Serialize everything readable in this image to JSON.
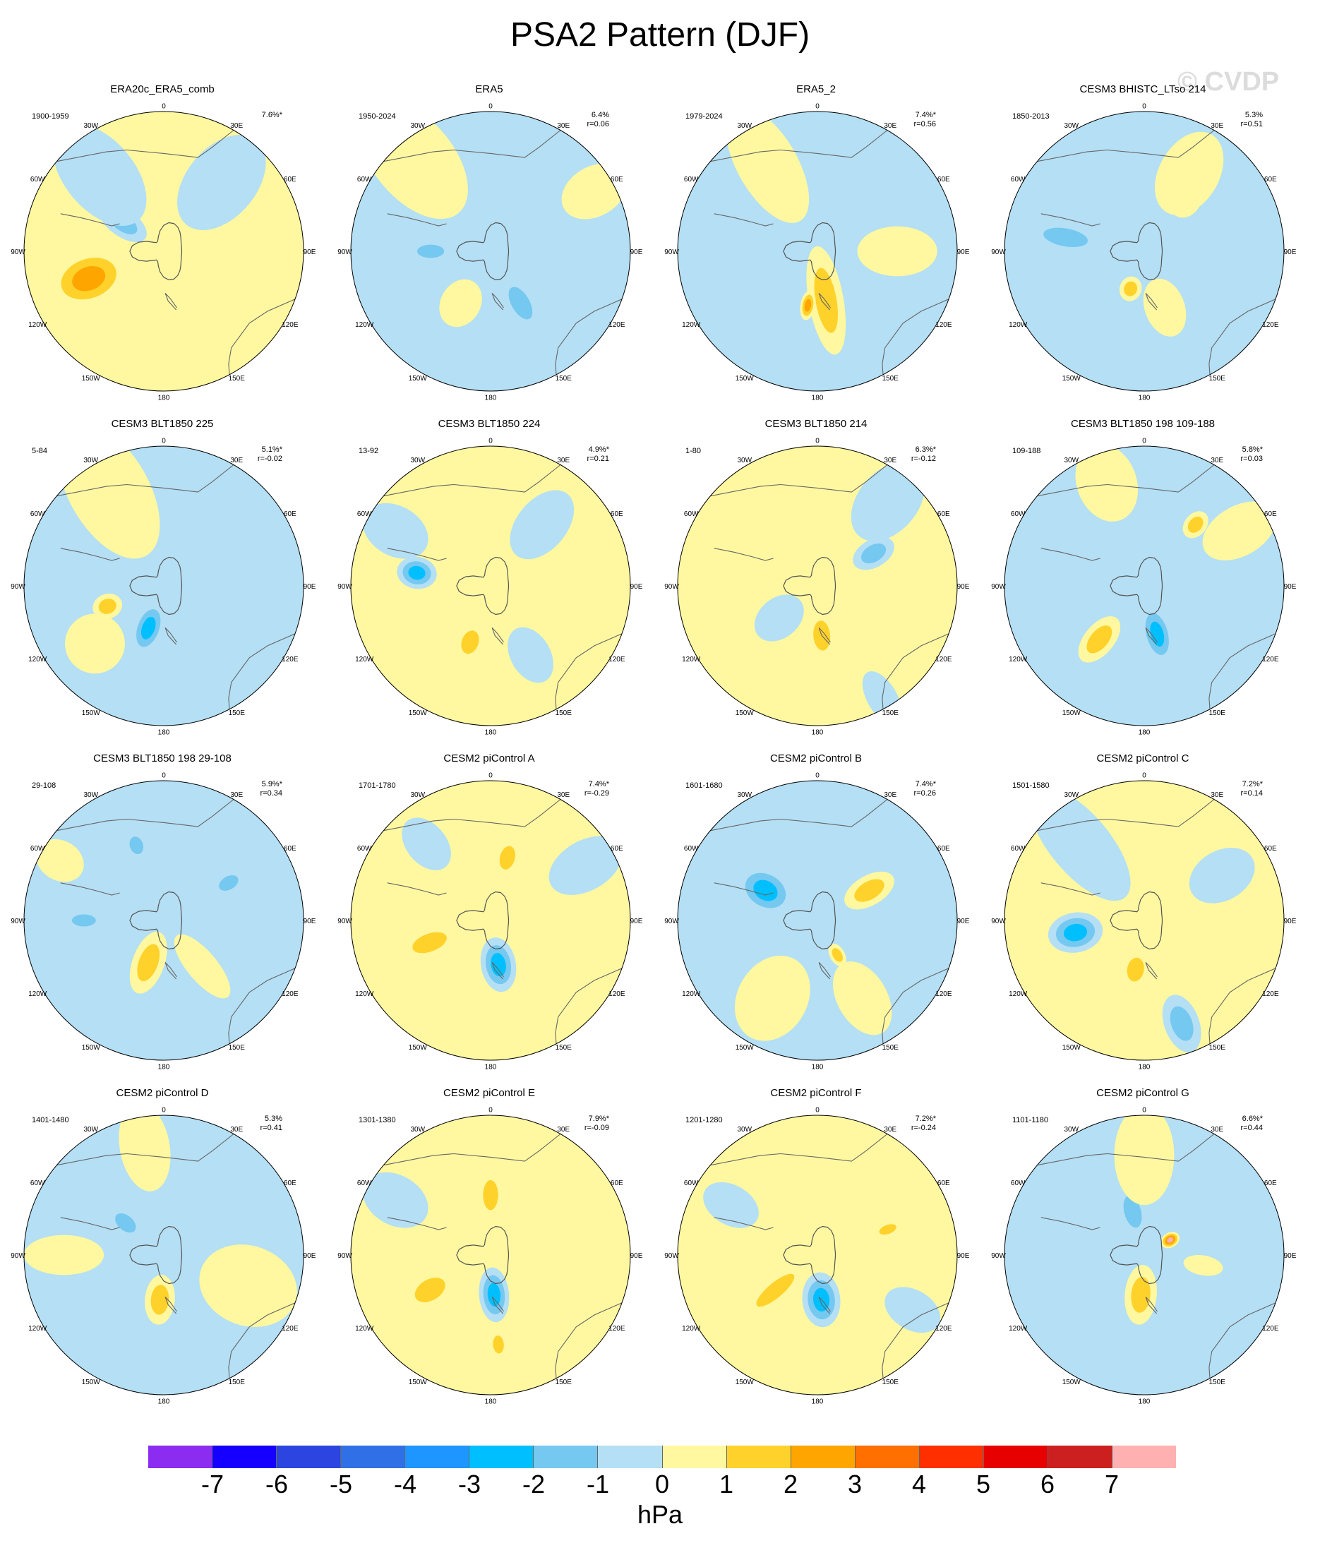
{
  "title": "PSA2 Pattern (DJF)",
  "watermark": "© CVDP",
  "lon_labels": [
    "0",
    "30E",
    "60E",
    "90E",
    "120E",
    "150E",
    "180",
    "150W",
    "120W",
    "90W",
    "60W",
    "30W"
  ],
  "panels": [
    {
      "title": "ERA20c_ERA5_comb",
      "years": "1900-1959",
      "pct": "7.6%*",
      "r": "",
      "bg": "yellow",
      "blobs": [
        {
          "lon": -110,
          "colat": 80,
          "l": 80,
          "w": 55,
          "lev": 3
        },
        {
          "lon": -55,
          "colat": 50,
          "l": 55,
          "w": 28,
          "lev": -2
        },
        {
          "lon": -40,
          "colat": 100,
          "l": 120,
          "w": 70,
          "lev": -1
        },
        {
          "lon": 40,
          "colat": 90,
          "l": 110,
          "w": 70,
          "lev": -1
        }
      ]
    },
    {
      "title": "ERA5",
      "years": "1950-2024",
      "pct": "6.4%",
      "r": "r=0.06",
      "bg": "blue",
      "blobs": [
        {
          "lon": -90,
          "colat": 60,
          "l": 45,
          "w": 22,
          "lev": -2
        },
        {
          "lon": 150,
          "colat": 60,
          "l": 60,
          "w": 30,
          "lev": -2
        },
        {
          "lon": -40,
          "colat": 120,
          "l": 140,
          "w": 80,
          "lev": 1
        },
        {
          "lon": -150,
          "colat": 60,
          "l": 50,
          "w": 40,
          "lev": 1
        },
        {
          "lon": 60,
          "colat": 120,
          "l": 70,
          "w": 50,
          "lev": 1
        }
      ]
    },
    {
      "title": "ERA5_2",
      "years": "1979-2024",
      "pct": "7.4%*",
      "r": "r=0.56",
      "bg": "blue",
      "blobs": [
        {
          "lon": 170,
          "colat": 50,
          "l": 110,
          "w": 35,
          "lev": 2
        },
        {
          "lon": -170,
          "colat": 55,
          "l": 30,
          "w": 15,
          "lev": 3
        },
        {
          "lon": -30,
          "colat": 100,
          "l": 130,
          "w": 60,
          "lev": 1
        },
        {
          "lon": 90,
          "colat": 80,
          "l": 80,
          "w": 50,
          "lev": 1
        }
      ]
    },
    {
      "title": "CESM3 BHISTC_LTso 214",
      "years": "1850-2013",
      "pct": "5.3%",
      "r": "r=0.51",
      "bg": "blue",
      "blobs": [
        {
          "lon": -80,
          "colat": 80,
          "l": 75,
          "w": 30,
          "lev": -2
        },
        {
          "lon": 40,
          "colat": 65,
          "l": 35,
          "w": 28,
          "lev": 2
        },
        {
          "lon": -160,
          "colat": 40,
          "l": 25,
          "w": 22,
          "lev": 2
        },
        {
          "lon": 30,
          "colat": 90,
          "l": 90,
          "w": 60,
          "lev": 1
        },
        {
          "lon": 160,
          "colat": 60,
          "l": 60,
          "w": 40,
          "lev": 1
        }
      ]
    },
    {
      "title": "CESM3 BLT1850 225",
      "years": "5-84",
      "pct": "5.1%*",
      "r": "r=-0.02",
      "bg": "blue",
      "blobs": [
        {
          "lon": -160,
          "colat": 45,
          "l": 55,
          "w": 30,
          "lev": -3
        },
        {
          "lon": -110,
          "colat": 60,
          "l": 30,
          "w": 25,
          "lev": 2
        },
        {
          "lon": -30,
          "colat": 110,
          "l": 150,
          "w": 80,
          "lev": 1
        },
        {
          "lon": -130,
          "colat": 90,
          "l": 60,
          "w": 60,
          "lev": 1
        }
      ]
    },
    {
      "title": "CESM3 BLT1850 224",
      "years": "13-92",
      "pct": "4.9%*",
      "r": "r=0.21",
      "bg": "yellow",
      "blobs": [
        {
          "lon": -80,
          "colat": 75,
          "l": 40,
          "w": 32,
          "lev": -3
        },
        {
          "lon": -160,
          "colat": 60,
          "l": 40,
          "w": 28,
          "lev": 2
        },
        {
          "lon": 40,
          "colat": 80,
          "l": 80,
          "w": 50,
          "lev": -1
        },
        {
          "lon": 150,
          "colat": 80,
          "l": 60,
          "w": 40,
          "lev": -1
        },
        {
          "lon": -60,
          "colat": 110,
          "l": 70,
          "w": 50,
          "lev": -1
        }
      ]
    },
    {
      "title": "CESM3 BLT1850 214",
      "years": "1-80",
      "pct": "6.3%*",
      "r": "r=-0.12",
      "bg": "yellow",
      "blobs": [
        {
          "lon": 60,
          "colat": 65,
          "l": 45,
          "w": 28,
          "lev": -2
        },
        {
          "lon": 175,
          "colat": 50,
          "l": 50,
          "w": 28,
          "lev": 2
        },
        {
          "lon": -130,
          "colat": 50,
          "l": 55,
          "w": 40,
          "lev": -1
        },
        {
          "lon": 40,
          "colat": 110,
          "l": 90,
          "w": 60,
          "lev": -1
        },
        {
          "lon": 150,
          "colat": 130,
          "l": 60,
          "w": 30,
          "lev": -1
        }
      ]
    },
    {
      "title": "CESM3 BLT1850 198 109-188",
      "years": "109-188",
      "pct": "5.8%*",
      "r": "r=0.03",
      "bg": "blue",
      "blobs": [
        {
          "lon": 165,
          "colat": 50,
          "l": 60,
          "w": 30,
          "lev": -3
        },
        {
          "lon": -140,
          "colat": 70,
          "l": 55,
          "w": 30,
          "lev": 2
        },
        {
          "lon": 40,
          "colat": 80,
          "l": 30,
          "w": 22,
          "lev": 2
        },
        {
          "lon": -20,
          "colat": 110,
          "l": 80,
          "w": 60,
          "lev": 1
        },
        {
          "lon": 60,
          "colat": 110,
          "l": 80,
          "w": 50,
          "lev": 1
        }
      ]
    },
    {
      "title": "CESM3 BLT1850 198 29-108",
      "years": "29-108",
      "pct": "5.9%*",
      "r": "r=0.34",
      "bg": "blue",
      "blobs": [
        {
          "lon": -160,
          "colat": 45,
          "l": 65,
          "w": 32,
          "lev": 2
        },
        {
          "lon": -90,
          "colat": 80,
          "l": 40,
          "w": 20,
          "lev": -2
        },
        {
          "lon": -20,
          "colat": 80,
          "l": 30,
          "w": 22,
          "lev": -2
        },
        {
          "lon": 60,
          "colat": 75,
          "l": 35,
          "w": 22,
          "lev": -2
        },
        {
          "lon": 140,
          "colat": 60,
          "l": 80,
          "w": 30,
          "lev": 1
        },
        {
          "lon": -60,
          "colat": 120,
          "l": 50,
          "w": 40,
          "lev": 1
        }
      ]
    },
    {
      "title": "CESM2 piControl A",
      "years": "1701-1780",
      "pct": "7.4%*",
      "r": "r=-0.29",
      "bg": "yellow",
      "blobs": [
        {
          "lon": 170,
          "colat": 45,
          "l": 55,
          "w": 35,
          "lev": -3
        },
        {
          "lon": -110,
          "colat": 65,
          "l": 60,
          "w": 30,
          "lev": 2
        },
        {
          "lon": 15,
          "colat": 65,
          "l": 40,
          "w": 25,
          "lev": 2
        },
        {
          "lon": -40,
          "colat": 100,
          "l": 60,
          "w": 40,
          "lev": -1
        },
        {
          "lon": 60,
          "colat": 110,
          "l": 80,
          "w": 50,
          "lev": -1
        }
      ]
    },
    {
      "title": "CESM2 piControl B",
      "years": "1601-1680",
      "pct": "7.4%*",
      "r": "r=0.26",
      "bg": "blue",
      "blobs": [
        {
          "lon": -60,
          "colat": 60,
          "l": 60,
          "w": 45,
          "lev": -3
        },
        {
          "lon": 60,
          "colat": 60,
          "l": 55,
          "w": 30,
          "lev": 2
        },
        {
          "lon": 150,
          "colat": 40,
          "l": 25,
          "w": 15,
          "lev": 2
        },
        {
          "lon": -150,
          "colat": 90,
          "l": 90,
          "w": 70,
          "lev": 1
        },
        {
          "lon": 150,
          "colat": 90,
          "l": 80,
          "w": 50,
          "lev": 1
        }
      ]
    },
    {
      "title": "CESM2 piControl C",
      "years": "1501-1580",
      "pct": "7.2%*",
      "r": "r=0.14",
      "bg": "yellow",
      "blobs": [
        {
          "lon": -100,
          "colat": 70,
          "l": 55,
          "w": 40,
          "lev": -3
        },
        {
          "lon": -170,
          "colat": 50,
          "l": 40,
          "w": 28,
          "lev": 2
        },
        {
          "lon": 160,
          "colat": 110,
          "l": 60,
          "w": 35,
          "lev": -2
        },
        {
          "lon": -40,
          "colat": 100,
          "l": 140,
          "w": 60,
          "lev": -1
        },
        {
          "lon": 60,
          "colat": 90,
          "l": 70,
          "w": 50,
          "lev": -1
        }
      ]
    },
    {
      "title": "CESM2 piControl D",
      "years": "1401-1480",
      "pct": "5.3%",
      "r": "r=0.41",
      "bg": "blue",
      "blobs": [
        {
          "lon": -175,
          "colat": 45,
          "l": 50,
          "w": 30,
          "lev": 2
        },
        {
          "lon": -50,
          "colat": 50,
          "l": 40,
          "w": 25,
          "lev": -2
        },
        {
          "lon": 110,
          "colat": 90,
          "l": 100,
          "w": 80,
          "lev": 1
        },
        {
          "lon": -90,
          "colat": 100,
          "l": 80,
          "w": 40,
          "lev": 1
        },
        {
          "lon": -10,
          "colat": 110,
          "l": 90,
          "w": 50,
          "lev": 1
        }
      ]
    },
    {
      "title": "CESM2 piControl E",
      "years": "1301-1380",
      "pct": "7.9%*",
      "r": "r=-0.09",
      "bg": "yellow",
      "blobs": [
        {
          "lon": 175,
          "colat": 40,
          "l": 55,
          "w": 30,
          "lev": -3
        },
        {
          "lon": -120,
          "colat": 70,
          "l": 55,
          "w": 35,
          "lev": 2
        },
        {
          "lon": 0,
          "colat": 60,
          "l": 50,
          "w": 25,
          "lev": 2
        },
        {
          "lon": 175,
          "colat": 90,
          "l": 30,
          "w": 18,
          "lev": 2
        },
        {
          "lon": -60,
          "colat": 110,
          "l": 70,
          "w": 50,
          "lev": -1
        }
      ]
    },
    {
      "title": "CESM2 piControl F",
      "years": "1201-1280",
      "pct": "7.2%*",
      "r": "r=-0.24",
      "bg": "yellow",
      "blobs": [
        {
          "lon": 175,
          "colat": 45,
          "l": 55,
          "w": 38,
          "lev": -3
        },
        {
          "lon": -130,
          "colat": 55,
          "l": 80,
          "w": 25,
          "lev": 2
        },
        {
          "lon": 70,
          "colat": 75,
          "l": 30,
          "w": 15,
          "lev": 2
        },
        {
          "lon": -60,
          "colat": 100,
          "l": 60,
          "w": 40,
          "lev": -1
        },
        {
          "lon": 120,
          "colat": 110,
          "l": 60,
          "w": 40,
          "lev": -1
        }
      ]
    },
    {
      "title": "CESM2 piControl G",
      "years": "1101-1180",
      "pct": "6.6%*",
      "r": "r=0.44",
      "bg": "blue",
      "blobs": [
        {
          "lon": -175,
          "colat": 40,
          "l": 60,
          "w": 32,
          "lev": 2
        },
        {
          "lon": -15,
          "colat": 45,
          "l": 55,
          "w": 28,
          "lev": -2
        },
        {
          "lon": 0,
          "colat": 100,
          "l": 100,
          "w": 60,
          "lev": 1
        },
        {
          "lon": 100,
          "colat": 60,
          "l": 40,
          "w": 20,
          "lev": 1
        },
        {
          "lon": 60,
          "colat": 30,
          "l": 20,
          "w": 15,
          "lev": 4
        }
      ]
    }
  ],
  "colorbar": {
    "colors": [
      "#8b2cf0",
      "#1500ff",
      "#2c44e0",
      "#3070e6",
      "#1e96ff",
      "#00bfff",
      "#75c8f0",
      "#b4dff4",
      "#fff8a0",
      "#ffd22b",
      "#ffa500",
      "#ff7000",
      "#ff2f00",
      "#e60000",
      "#cc1f1f",
      "#ffb0b0"
    ],
    "labels": [
      "-7",
      "-6",
      "-5",
      "-4",
      "-3",
      "-2",
      "-1",
      "0",
      "1",
      "2",
      "3",
      "4",
      "5",
      "6",
      "7"
    ],
    "units": "hPa"
  },
  "level_colors": {
    "-3": "#00bfff",
    "-2": "#75c8f0",
    "-1": "#b4dff4",
    "1": "#fff8a0",
    "2": "#ffd22b",
    "3": "#ffa500",
    "4": "#ffb0b0"
  },
  "background_colors": {
    "yellow": "#fff8a0",
    "blue": "#b4dff4"
  }
}
